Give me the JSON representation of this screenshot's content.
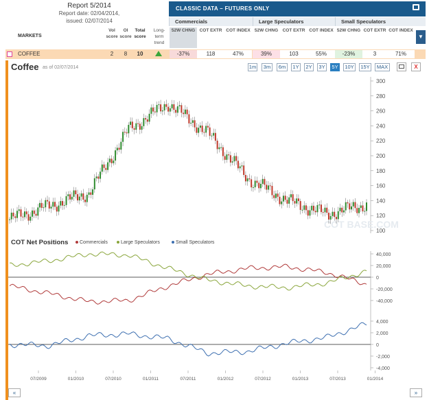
{
  "report": {
    "title": "Report 5/2014",
    "date_line": "Report date: 02/04/2014,",
    "issued_line": "issued: 02/07/2014"
  },
  "header": {
    "classic_label": "CLASSIC DATA – FUTURES ONLY",
    "print_icon": "printer-icon",
    "groups": [
      "Commercials",
      "Large Speculators",
      "Small Speculators"
    ],
    "markets_label": "MARKETS",
    "score_cols": [
      "Vol score",
      "OI score",
      "Total score",
      "Long-term trend"
    ],
    "metric_cols": [
      "52W CHNG",
      "COT EXTR",
      "COT INDEX"
    ],
    "sort_icon": "sort-down-icon"
  },
  "row": {
    "market": "COFFEE",
    "vol_score": "2",
    "oi_score": "8",
    "total_score": "10",
    "trend_icon": "up-arrow-icon",
    "commercials": [
      "-37%",
      "118",
      "47%"
    ],
    "large_spec": [
      "39%",
      "103",
      "55%"
    ],
    "small_spec": [
      "-23%",
      "3",
      "71%"
    ]
  },
  "chart": {
    "title": "Coffee",
    "as_of": "as of 02/07/2014",
    "ranges": [
      "1m",
      "3m",
      "6m",
      "1Y",
      "2Y",
      "3Y",
      "5Y",
      "10Y",
      "15Y",
      "MAX"
    ],
    "active_range": "5Y",
    "close_label": "X",
    "watermark": "COT BASE.COM"
  },
  "chart_data": [
    {
      "type": "line",
      "title": "Coffee",
      "x": [
        "07/2009",
        "01/2010",
        "07/2010",
        "01/2011",
        "07/2011",
        "01/2012",
        "07/2012",
        "01/2013",
        "07/2013",
        "01/2014"
      ],
      "series": [
        {
          "values": [
            115,
            133,
            150,
            235,
            270,
            230,
            170,
            140,
            122,
            135
          ]
        }
      ],
      "ylim": [
        100,
        310
      ],
      "yticks": [
        "300",
        "280",
        "260",
        "240",
        "220",
        "200",
        "180",
        "160",
        "140",
        "120",
        "100"
      ]
    },
    {
      "type": "line",
      "title": "COT Net Positions",
      "x": [
        "07/2009",
        "01/2010",
        "07/2010",
        "01/2011",
        "07/2011",
        "01/2012",
        "07/2012",
        "01/2013",
        "07/2013",
        "01/2014"
      ],
      "series": [
        {
          "name": "Commercials",
          "color": "#b03a3a",
          "values": [
            -15000,
            -28000,
            -42000,
            -40000,
            -15000,
            5000,
            15000,
            18000,
            8000,
            -12000
          ]
        },
        {
          "name": "Large Speculators",
          "color": "#8aa63c",
          "values": [
            20000,
            28000,
            40000,
            38000,
            15000,
            -5000,
            -15000,
            -18000,
            -10000,
            10000
          ]
        },
        {
          "name": "Small Speculators",
          "color": "#3d6fb0",
          "values": [
            0,
            -200,
            1500,
            1800,
            1000,
            -1500,
            -1200,
            200,
            1200,
            3500
          ]
        }
      ],
      "yticks_upper": [
        "40,000",
        "20,000",
        "0",
        "-20,000",
        "-40,000"
      ],
      "yticks_lower": [
        "4,000",
        "2,000",
        "0",
        "-2,000",
        "-4,000"
      ]
    }
  ],
  "xticks": [
    "07/2009",
    "01/2010",
    "07/2010",
    "01/2011",
    "07/2011",
    "01/2012",
    "07/2012",
    "01/2013",
    "07/2013",
    "01/2014"
  ],
  "cot": {
    "title": "COT Net Positions",
    "legend": [
      {
        "label": "Commercials",
        "color": "#b03a3a"
      },
      {
        "label": "Large Speculators",
        "color": "#8aa63c"
      },
      {
        "label": "Small Speculators",
        "color": "#3d6fb0"
      }
    ]
  },
  "nav": {
    "prev": "«",
    "next": "»"
  }
}
